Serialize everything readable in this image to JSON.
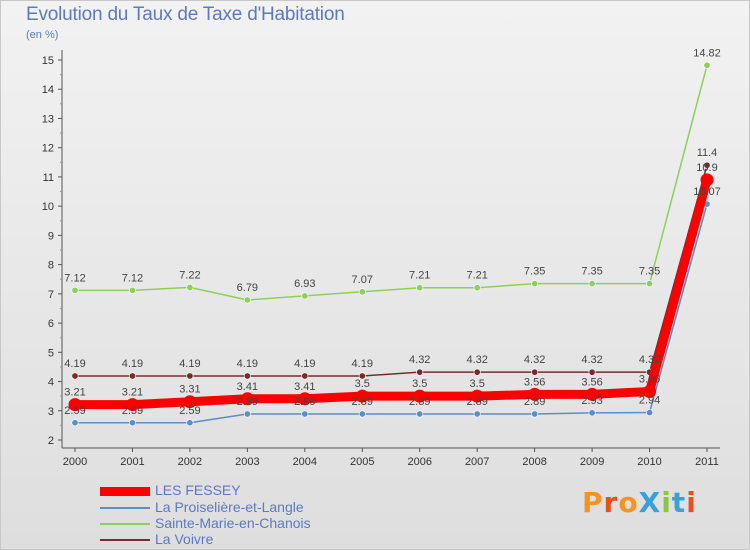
{
  "header": {
    "title": "Evolution du Taux de Taxe d'Habitation",
    "unit": "(en %)"
  },
  "brand": {
    "text": "ProXiti",
    "colors": [
      "#f7931e",
      "#e94e1b",
      "#f7931e",
      "#3aa0d8",
      "#8cc63f",
      "#3aa0d8",
      "#e94e1b"
    ]
  },
  "chart_data": {
    "type": "line",
    "title": "Evolution du Taux de Taxe d'Habitation",
    "ylabel": "(en %)",
    "xlabel": "",
    "categories": [
      "2000",
      "2001",
      "2002",
      "2003",
      "2004",
      "2005",
      "2006",
      "2007",
      "2008",
      "2009",
      "2010",
      "2011"
    ],
    "ylim": [
      2,
      15
    ],
    "yticks": [
      2,
      3,
      4,
      5,
      6,
      7,
      8,
      9,
      10,
      11,
      12,
      13,
      14,
      15
    ],
    "grid": false,
    "legend_position": "bottom-left",
    "series": [
      {
        "name": "LES FESSEY",
        "color": "#ff0000",
        "values": [
          3.21,
          3.21,
          3.31,
          3.41,
          3.41,
          3.5,
          3.5,
          3.5,
          3.56,
          3.56,
          3.66,
          10.9
        ],
        "labels": [
          "3.21",
          "3.21",
          "3.31",
          "3.41",
          "3.41",
          "3.5",
          "3.5",
          "3.5",
          "3.56",
          "3.56",
          "3.66",
          "10.9"
        ]
      },
      {
        "name": "La Proiselière-et-Langle",
        "color": "#5b8ec9",
        "values": [
          2.59,
          2.59,
          2.59,
          2.89,
          2.89,
          2.89,
          2.89,
          2.89,
          2.89,
          2.93,
          2.94,
          10.07
        ],
        "labels": [
          "2.59",
          "2.59",
          "2.59",
          "2.89",
          "2.89",
          "2.89",
          "2.89",
          "2.89",
          "2.89",
          "2.93",
          "2.94",
          "10.07"
        ]
      },
      {
        "name": "Sainte-Marie-en-Chanois",
        "color": "#8cd05a",
        "values": [
          7.12,
          7.12,
          7.22,
          6.79,
          6.93,
          7.07,
          7.21,
          7.21,
          7.35,
          7.35,
          7.35,
          14.82
        ],
        "labels": [
          "7.12",
          "7.12",
          "7.22",
          "6.79",
          "6.93",
          "7.07",
          "7.21",
          "7.21",
          "7.35",
          "7.35",
          "7.35",
          "14.82"
        ]
      },
      {
        "name": "La Voivre",
        "color": "#7a2a2a",
        "values": [
          4.19,
          4.19,
          4.19,
          4.19,
          4.19,
          4.19,
          4.32,
          4.32,
          4.32,
          4.32,
          4.32,
          11.4
        ],
        "labels": [
          "4.19",
          "4.19",
          "4.19",
          "4.19",
          "4.19",
          "4.19",
          "4.32",
          "4.32",
          "4.32",
          "4.32",
          "4.32",
          "11.4"
        ]
      }
    ]
  }
}
